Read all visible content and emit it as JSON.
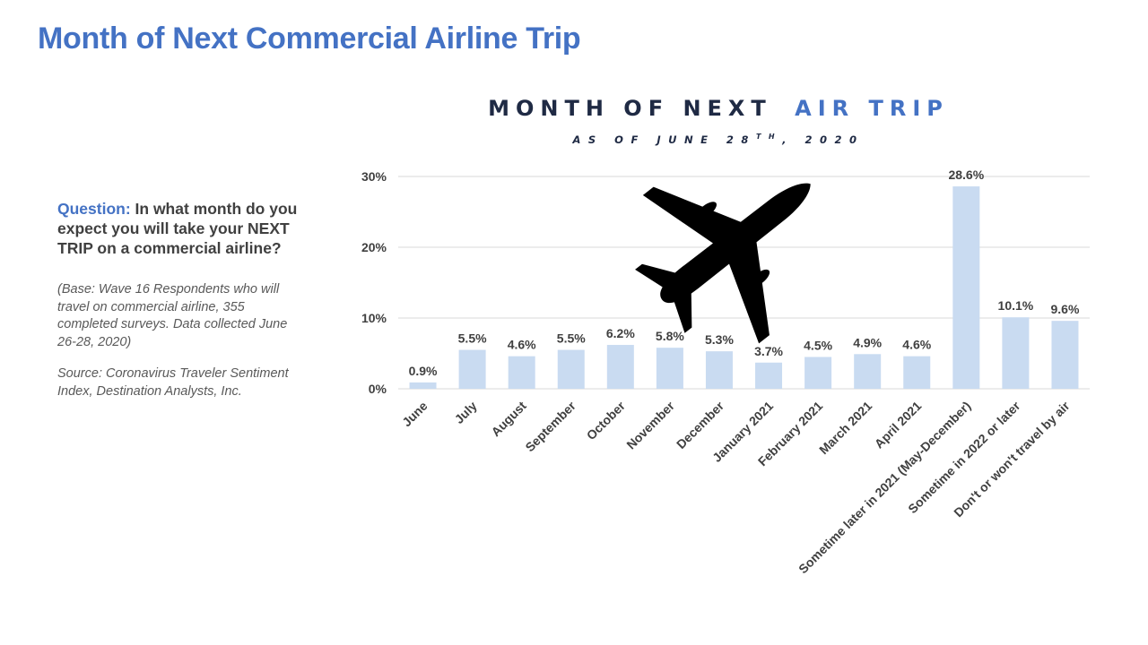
{
  "slide": {
    "title": "Month of Next Commercial Airline Trip"
  },
  "sidebar": {
    "question_label": "Question:",
    "question_text": " In what month do you expect you will take your NEXT TRIP on a commercial airline?",
    "base_note": "(Base: Wave 16 Respondents who will travel on commercial airline, 355 completed surveys. Data collected June 26-28, 2020)",
    "source_note": "Source: Coronavirus Traveler Sentiment Index, Destination Analysts, Inc."
  },
  "colors": {
    "accent": "#4472C4",
    "navy": "#1F2A44",
    "bar": "#C9DBF1",
    "grid": "#D9D9D9"
  },
  "icons": {
    "chart_decoration": "airplane-icon"
  },
  "chart_data": {
    "type": "bar",
    "title_part1": "MONTH OF NEXT",
    "title_part2": "AIR TRIP",
    "subtitle_pre": "AS OF JUNE 28",
    "subtitle_sup": "TH",
    "subtitle_post": ", 2020",
    "xlabel": "",
    "ylabel": "",
    "ylim": [
      0,
      30
    ],
    "yticks": [
      0,
      10,
      20,
      30
    ],
    "ytick_labels": [
      "0%",
      "10%",
      "20%",
      "30%"
    ],
    "grid": true,
    "categories": [
      "June",
      "July",
      "August",
      "September",
      "October",
      "November",
      "December",
      "January 2021",
      "February 2021",
      "March 2021",
      "April 2021",
      "Sometime later in 2021 (May-December)",
      "Sometime in 2022 or later",
      "Don't or won't travel by air"
    ],
    "values": [
      0.9,
      5.5,
      4.6,
      5.5,
      6.2,
      5.8,
      5.3,
      3.7,
      4.5,
      4.9,
      4.6,
      28.6,
      10.1,
      9.6
    ],
    "data_labels": [
      "0.9%",
      "5.5%",
      "4.6%",
      "5.5%",
      "6.2%",
      "5.8%",
      "5.3%",
      "3.7%",
      "4.5%",
      "4.9%",
      "4.6%",
      "28.6%",
      "10.1%",
      "9.6%"
    ]
  }
}
